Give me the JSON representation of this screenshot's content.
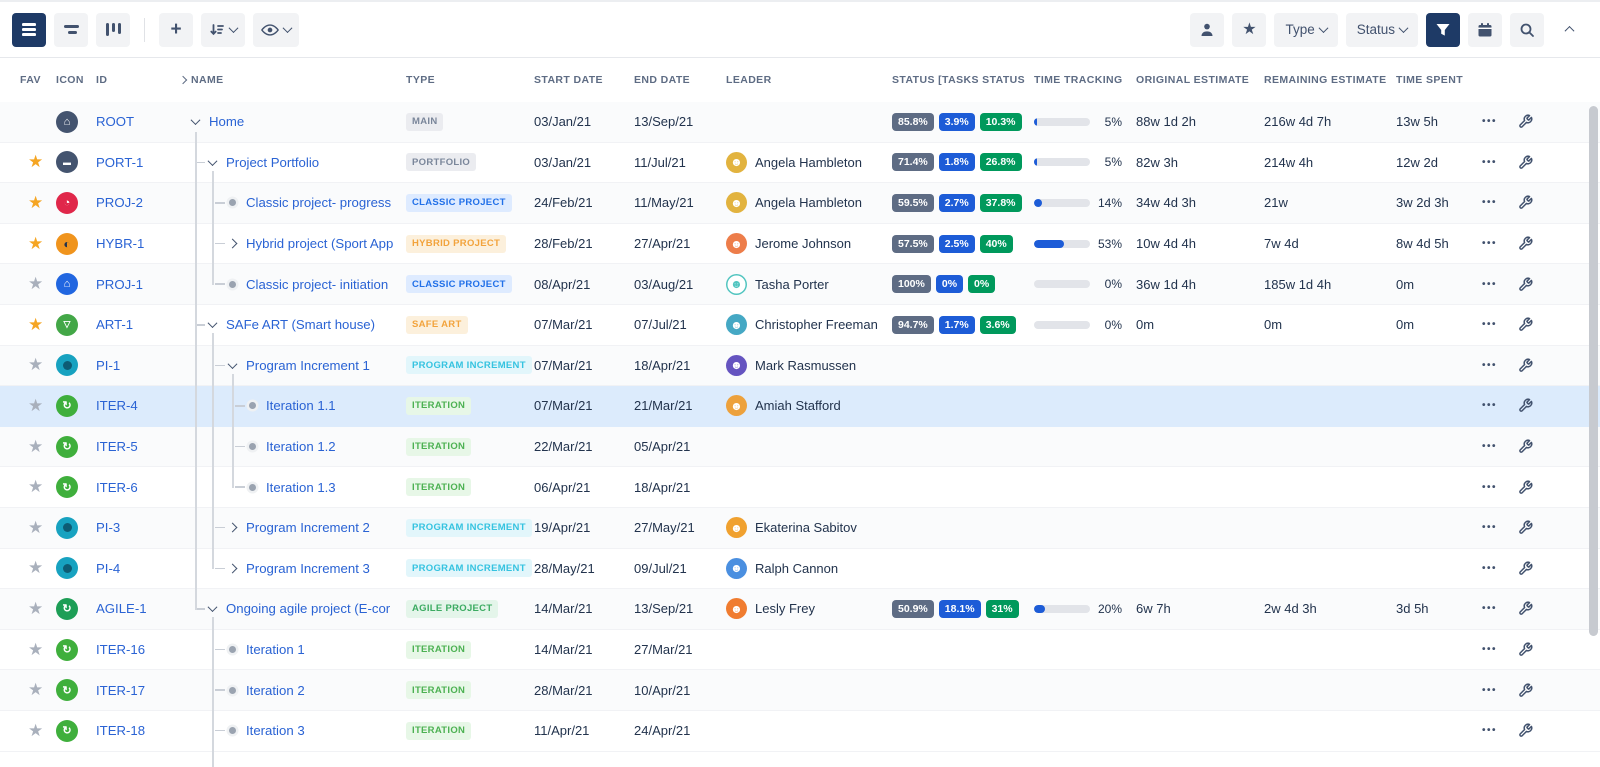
{
  "toolbar": {
    "plus_glyph": "+",
    "star_glyph": "★",
    "type_label": "Type",
    "status_label": "Status"
  },
  "icons": {
    "ellipsis": "•••",
    "face": "☻",
    "home": "⌂",
    "briefcase": "▬",
    "clock": "◔",
    "half": "◐",
    "train": "▽",
    "iter": "↻"
  },
  "table": {
    "status_colors": [
      "#5e6c84",
      "#1d5cd7",
      "#00995c"
    ],
    "columns": [
      "FAV",
      "ICON",
      "ID",
      "NAME",
      "TYPE",
      "START DATE",
      "END DATE",
      "LEADER",
      "STATUS [TASKS STATUS",
      "TIME TRACKING",
      "ORIGINAL ESTIMATE",
      "REMAINING ESTIMATE",
      "TIME SPENT",
      "",
      ""
    ],
    "rows": [
      {
        "fav": null,
        "icon": {
          "kind": "home",
          "bg": "#44546f"
        },
        "id": "ROOT",
        "depth": 0,
        "conn": "down",
        "name": "Home",
        "type": {
          "label": "MAIN",
          "bg": "#ebecf0",
          "fg": "#7a869a"
        },
        "start": "03/Jan/21",
        "end": "13/Sep/21",
        "leader": null,
        "status": [
          "85.8%",
          "3.9%",
          "10.3%"
        ],
        "tracking": {
          "pct": 5,
          "label": "5%"
        },
        "original": "88w 1d 2h",
        "remaining": "216w 4d 7h",
        "spent": "13w 5h"
      },
      {
        "fav": "on",
        "icon": {
          "kind": "briefcase",
          "bg": "#44546f"
        },
        "id": "PORT-1",
        "depth": 1,
        "conn": "down",
        "name": "Project Portfolio",
        "type": {
          "label": "PORTFOLIO",
          "bg": "#ebecf0",
          "fg": "#7a869a"
        },
        "start": "03/Jan/21",
        "end": "11/Jul/21",
        "leader": {
          "name": "Angela Hambleton",
          "bg": "#e2b33f",
          "fg": "#fff"
        },
        "status": [
          "71.4%",
          "1.8%",
          "26.8%"
        ],
        "tracking": {
          "pct": 5,
          "label": "5%"
        },
        "original": "82w 3h",
        "remaining": "214w 4h",
        "spent": "12w 2d"
      },
      {
        "fav": "on",
        "icon": {
          "kind": "clock",
          "bg": "#e0274a"
        },
        "id": "PROJ-2",
        "depth": 2,
        "conn": "dot",
        "name": "Classic project- progress",
        "type": {
          "label": "CLASSIC PROJECT",
          "bg": "#deebff",
          "fg": "#2170e8"
        },
        "start": "24/Feb/21",
        "end": "11/May/21",
        "leader": {
          "name": "Angela Hambleton",
          "bg": "#e2b33f",
          "fg": "#fff"
        },
        "status": [
          "59.5%",
          "2.7%",
          "37.8%"
        ],
        "tracking": {
          "pct": 14,
          "label": "14%"
        },
        "original": "34w 4d 3h",
        "remaining": "21w",
        "spent": "3w 2d 3h"
      },
      {
        "fav": "on",
        "icon": {
          "kind": "half",
          "bg": "#f0941d"
        },
        "id": "HYBR-1",
        "depth": 2,
        "conn": "right",
        "name": "Hybrid project (Sport App",
        "type": {
          "label": "HYBRID PROJECT",
          "bg": "#fcf0dc",
          "fg": "#f2a33c"
        },
        "start": "28/Feb/21",
        "end": "27/Apr/21",
        "leader": {
          "name": "Jerome Johnson",
          "bg": "#ed7d4a",
          "fg": "#fff"
        },
        "status": [
          "57.5%",
          "2.5%",
          "40%"
        ],
        "tracking": {
          "pct": 53,
          "label": "53%"
        },
        "original": "10w 4d 4h",
        "remaining": "7w 4d",
        "spent": "8w 4d 5h"
      },
      {
        "fav": "off",
        "icon": {
          "kind": "home",
          "bg": "#2166e0"
        },
        "id": "PROJ-1",
        "depth": 2,
        "conn": "dot",
        "name": "Classic project- initiation",
        "type": {
          "label": "CLASSIC PROJECT",
          "bg": "#deebff",
          "fg": "#2170e8"
        },
        "start": "08/Apr/21",
        "end": "03/Aug/21",
        "leader": {
          "name": "Tasha Porter",
          "bg": "#ffffff",
          "fg": "#52c5c0",
          "border": "#52c5c0"
        },
        "status": [
          "100%",
          "0%",
          "0%"
        ],
        "tracking": {
          "pct": 0,
          "label": "0%"
        },
        "original": "36w 1d 4h",
        "remaining": "185w 1d 4h",
        "spent": "0m"
      },
      {
        "fav": "on",
        "icon": {
          "kind": "train",
          "bg": "#43a747"
        },
        "id": "ART-1",
        "depth": 1,
        "conn": "down",
        "name": "SAFe ART (Smart house)",
        "type": {
          "label": "SAFE ART",
          "bg": "#fcf0dc",
          "fg": "#f2a33c"
        },
        "start": "07/Mar/21",
        "end": "07/Jul/21",
        "leader": {
          "name": "Christopher Freeman",
          "bg": "#45a8c4",
          "fg": "#fff"
        },
        "status": [
          "94.7%",
          "1.7%",
          "3.6%"
        ],
        "tracking": {
          "pct": 0,
          "label": "0%"
        },
        "original": "0m",
        "remaining": "0m",
        "spent": "0m"
      },
      {
        "fav": "off",
        "icon": {
          "kind": "pi",
          "bg": "#17a2c0"
        },
        "id": "PI-1",
        "depth": 2,
        "conn": "down",
        "name": "Program Increment 1",
        "type": {
          "label": "PROGRAM INCREMENT",
          "bg": "#e2f6fb",
          "fg": "#35c3e0"
        },
        "start": "07/Mar/21",
        "end": "18/Apr/21",
        "leader": {
          "name": "Mark Rasmussen",
          "bg": "#6554c0",
          "fg": "#fff"
        },
        "status": null,
        "tracking": null,
        "original": "",
        "remaining": "",
        "spent": ""
      },
      {
        "fav": "off",
        "icon": {
          "kind": "iter",
          "bg": "#3faf3c"
        },
        "id": "ITER-4",
        "depth": 3,
        "conn": "dot",
        "selected": true,
        "name": "Iteration 1.1",
        "type": {
          "label": "ITERATION",
          "bg": "#e7f7e7",
          "fg": "#4cb152"
        },
        "start": "07/Mar/21",
        "end": "21/Mar/21",
        "leader": {
          "name": "Amiah Stafford",
          "bg": "#eda13c",
          "fg": "#fff"
        },
        "status": null,
        "tracking": null,
        "original": "",
        "remaining": "",
        "spent": ""
      },
      {
        "fav": "off",
        "icon": {
          "kind": "iter",
          "bg": "#3faf3c"
        },
        "id": "ITER-5",
        "depth": 3,
        "conn": "dot",
        "name": "Iteration 1.2",
        "type": {
          "label": "ITERATION",
          "bg": "#e7f7e7",
          "fg": "#4cb152"
        },
        "start": "22/Mar/21",
        "end": "05/Apr/21",
        "leader": null,
        "status": null,
        "tracking": null,
        "original": "",
        "remaining": "",
        "spent": ""
      },
      {
        "fav": "off",
        "icon": {
          "kind": "iter",
          "bg": "#3faf3c"
        },
        "id": "ITER-6",
        "depth": 3,
        "conn": "dot",
        "name": "Iteration 1.3",
        "type": {
          "label": "ITERATION",
          "bg": "#e7f7e7",
          "fg": "#4cb152"
        },
        "start": "06/Apr/21",
        "end": "18/Apr/21",
        "leader": null,
        "status": null,
        "tracking": null,
        "original": "",
        "remaining": "",
        "spent": ""
      },
      {
        "fav": "off",
        "icon": {
          "kind": "pi",
          "bg": "#17a2c0"
        },
        "id": "PI-3",
        "depth": 2,
        "conn": "right",
        "name": "Program Increment 2",
        "type": {
          "label": "PROGRAM INCREMENT",
          "bg": "#e2f6fb",
          "fg": "#35c3e0"
        },
        "start": "19/Apr/21",
        "end": "27/May/21",
        "leader": {
          "name": "Ekaterina Sabitov",
          "bg": "#f0a12f",
          "fg": "#fff"
        },
        "status": null,
        "tracking": null,
        "original": "",
        "remaining": "",
        "spent": ""
      },
      {
        "fav": "off",
        "icon": {
          "kind": "pi",
          "bg": "#17a2c0"
        },
        "id": "PI-4",
        "depth": 2,
        "conn": "right",
        "name": "Program Increment 3",
        "type": {
          "label": "PROGRAM INCREMENT",
          "bg": "#e2f6fb",
          "fg": "#35c3e0"
        },
        "start": "28/May/21",
        "end": "09/Jul/21",
        "leader": {
          "name": "Ralph Cannon",
          "bg": "#4a8fe0",
          "fg": "#fff"
        },
        "status": null,
        "tracking": null,
        "original": "",
        "remaining": "",
        "spent": ""
      },
      {
        "fav": "off",
        "icon": {
          "kind": "iter",
          "bg": "#1d9e56"
        },
        "id": "AGILE-1",
        "depth": 1,
        "conn": "down",
        "name": "Ongoing agile project (E-cor",
        "type": {
          "label": "AGILE PROJECT",
          "bg": "#e4f5ea",
          "fg": "#3cab62"
        },
        "start": "14/Mar/21",
        "end": "13/Sep/21",
        "leader": {
          "name": "Lesly Frey",
          "bg": "#f07c30",
          "fg": "#fff"
        },
        "status": [
          "50.9%",
          "18.1%",
          "31%"
        ],
        "tracking": {
          "pct": 20,
          "label": "20%"
        },
        "original": "6w 7h",
        "remaining": "2w 4d 3h",
        "spent": "3d 5h"
      },
      {
        "fav": "off",
        "icon": {
          "kind": "iter",
          "bg": "#3faf3c"
        },
        "id": "ITER-16",
        "depth": 2,
        "conn": "dot",
        "name": "Iteration 1",
        "type": {
          "label": "ITERATION",
          "bg": "#e7f7e7",
          "fg": "#4cb152"
        },
        "start": "14/Mar/21",
        "end": "27/Mar/21",
        "leader": null,
        "status": null,
        "tracking": null,
        "original": "",
        "remaining": "",
        "spent": ""
      },
      {
        "fav": "off",
        "icon": {
          "kind": "iter",
          "bg": "#3faf3c"
        },
        "id": "ITER-17",
        "depth": 2,
        "conn": "dot",
        "name": "Iteration 2",
        "type": {
          "label": "ITERATION",
          "bg": "#e7f7e7",
          "fg": "#4cb152"
        },
        "start": "28/Mar/21",
        "end": "10/Apr/21",
        "leader": null,
        "status": null,
        "tracking": null,
        "original": "",
        "remaining": "",
        "spent": ""
      },
      {
        "fav": "off",
        "icon": {
          "kind": "iter",
          "bg": "#3faf3c"
        },
        "id": "ITER-18",
        "depth": 2,
        "conn": "dot",
        "name": "Iteration 3",
        "type": {
          "label": "ITERATION",
          "bg": "#e7f7e7",
          "fg": "#4cb152"
        },
        "start": "11/Apr/21",
        "end": "24/Apr/21",
        "leader": null,
        "status": null,
        "tracking": null,
        "original": "",
        "remaining": "",
        "spent": ""
      }
    ]
  }
}
